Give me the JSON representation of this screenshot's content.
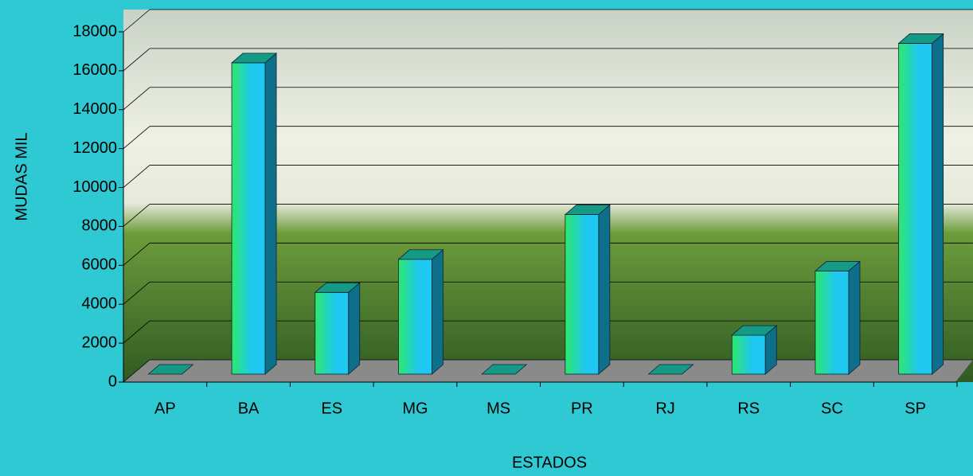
{
  "chart_data": {
    "type": "bar",
    "x_label": "ESTADOS",
    "y_label": "MUDAS MIL",
    "categories": [
      "AP",
      "BA",
      "ES",
      "MG",
      "MS",
      "PR",
      "RJ",
      "RS",
      "SC",
      "SP"
    ],
    "values": [
      0,
      16000,
      4200,
      5900,
      0,
      8200,
      0,
      2000,
      5300,
      17000
    ],
    "color": "#1ec8f0",
    "ylim": [
      0,
      18000
    ],
    "yticks": [
      0,
      2000,
      4000,
      6000,
      8000,
      10000,
      12000,
      14000,
      16000,
      18000
    ],
    "grid": true
  }
}
